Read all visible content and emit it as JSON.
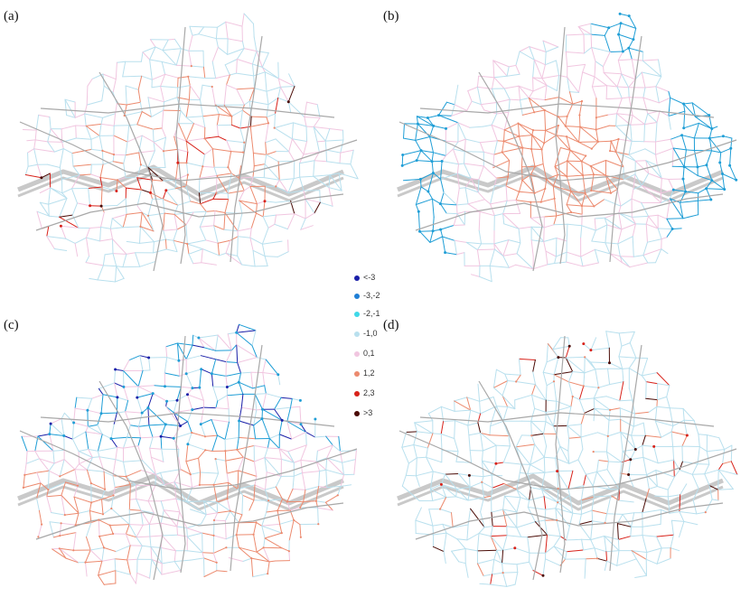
{
  "panels": [
    {
      "id": "a",
      "label": "(a)",
      "scheme": "a"
    },
    {
      "id": "b",
      "label": "(b)",
      "scheme": "b"
    },
    {
      "id": "c",
      "label": "(c)",
      "scheme": "c"
    },
    {
      "id": "d",
      "label": "(d)",
      "scheme": "d"
    }
  ],
  "legend": {
    "items": [
      {
        "label": "<-3",
        "color": "#1a1fa8"
      },
      {
        "label": "-3,-2",
        "color": "#1f7fd6"
      },
      {
        "label": "-2,-1",
        "color": "#3fd8e8"
      },
      {
        "label": "-1,0",
        "color": "#b9e0ee"
      },
      {
        "label": "0,1",
        "color": "#f1c6e0"
      },
      {
        "label": "1,2",
        "color": "#ec8a6e"
      },
      {
        "label": "2,3",
        "color": "#d8221a"
      },
      {
        "label": ">3",
        "color": "#4a0b06"
      }
    ]
  },
  "colors": {
    "base_road": "#a8a8a8",
    "light_blue": "#b9e0ee",
    "pink": "#f1c6e0",
    "salmon": "#ec8a6e",
    "red": "#d8221a",
    "darkred": "#4a0b06",
    "cyan_blue": "#1f9ed6",
    "navy": "#1a1fa8"
  }
}
